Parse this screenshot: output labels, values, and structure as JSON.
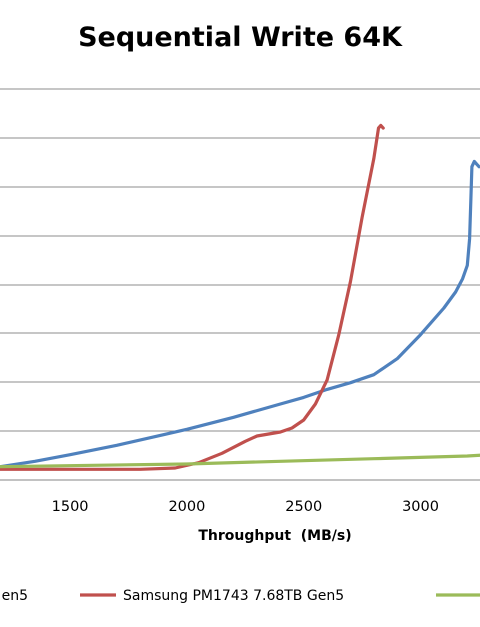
{
  "chart_data": {
    "type": "line",
    "title": "Sequential Write 64K",
    "xlabel": "Throughput  (MB/s)",
    "ylabel": "",
    "xlim": [
      1200,
      3400
    ],
    "x_ticks": [
      "1500",
      "2000",
      "2500",
      "3000"
    ],
    "gridlines": "horizontal",
    "legend_position": "bottom",
    "series": [
      {
        "name": "en5",
        "color": "#4F81BD",
        "points": [
          [
            1200,
            1
          ],
          [
            1350,
            5
          ],
          [
            1500,
            10
          ],
          [
            1700,
            17
          ],
          [
            1900,
            25
          ],
          [
            2000,
            29
          ],
          [
            2200,
            38
          ],
          [
            2400,
            48
          ],
          [
            2500,
            53
          ],
          [
            2600,
            59
          ],
          [
            2700,
            64
          ],
          [
            2800,
            70
          ],
          [
            2900,
            82
          ],
          [
            3000,
            100
          ],
          [
            3100,
            120
          ],
          [
            3150,
            132
          ],
          [
            3180,
            142
          ],
          [
            3200,
            152
          ],
          [
            3210,
            172
          ],
          [
            3215,
            200
          ],
          [
            3220,
            226
          ],
          [
            3230,
            230
          ],
          [
            3240,
            228
          ],
          [
            3250,
            226
          ]
        ]
      },
      {
        "name": "Samsung PM1743 7.68TB Gen5",
        "color": "#C0504D",
        "points": [
          [
            1200,
            -1
          ],
          [
            1500,
            -1
          ],
          [
            1800,
            -1
          ],
          [
            1950,
            0
          ],
          [
            2050,
            4
          ],
          [
            2150,
            11
          ],
          [
            2250,
            20
          ],
          [
            2300,
            24
          ],
          [
            2400,
            27
          ],
          [
            2450,
            30
          ],
          [
            2500,
            36
          ],
          [
            2550,
            48
          ],
          [
            2600,
            66
          ],
          [
            2650,
            100
          ],
          [
            2700,
            140
          ],
          [
            2750,
            188
          ],
          [
            2800,
            232
          ],
          [
            2820,
            255
          ],
          [
            2830,
            257
          ],
          [
            2840,
            255
          ]
        ]
      },
      {
        "name": "",
        "color": "#9BBB59",
        "points": [
          [
            1200,
            1
          ],
          [
            1600,
            2
          ],
          [
            2000,
            3
          ],
          [
            2400,
            5
          ],
          [
            2800,
            7
          ],
          [
            3200,
            9
          ],
          [
            3400,
            11
          ]
        ]
      }
    ],
    "legend": [
      {
        "label": "en5",
        "color": "#4F81BD"
      },
      {
        "label": "Samsung PM1743 7.68TB Gen5",
        "color": "#C0504D"
      },
      {
        "label": "",
        "color": "#9BBB59"
      }
    ]
  }
}
